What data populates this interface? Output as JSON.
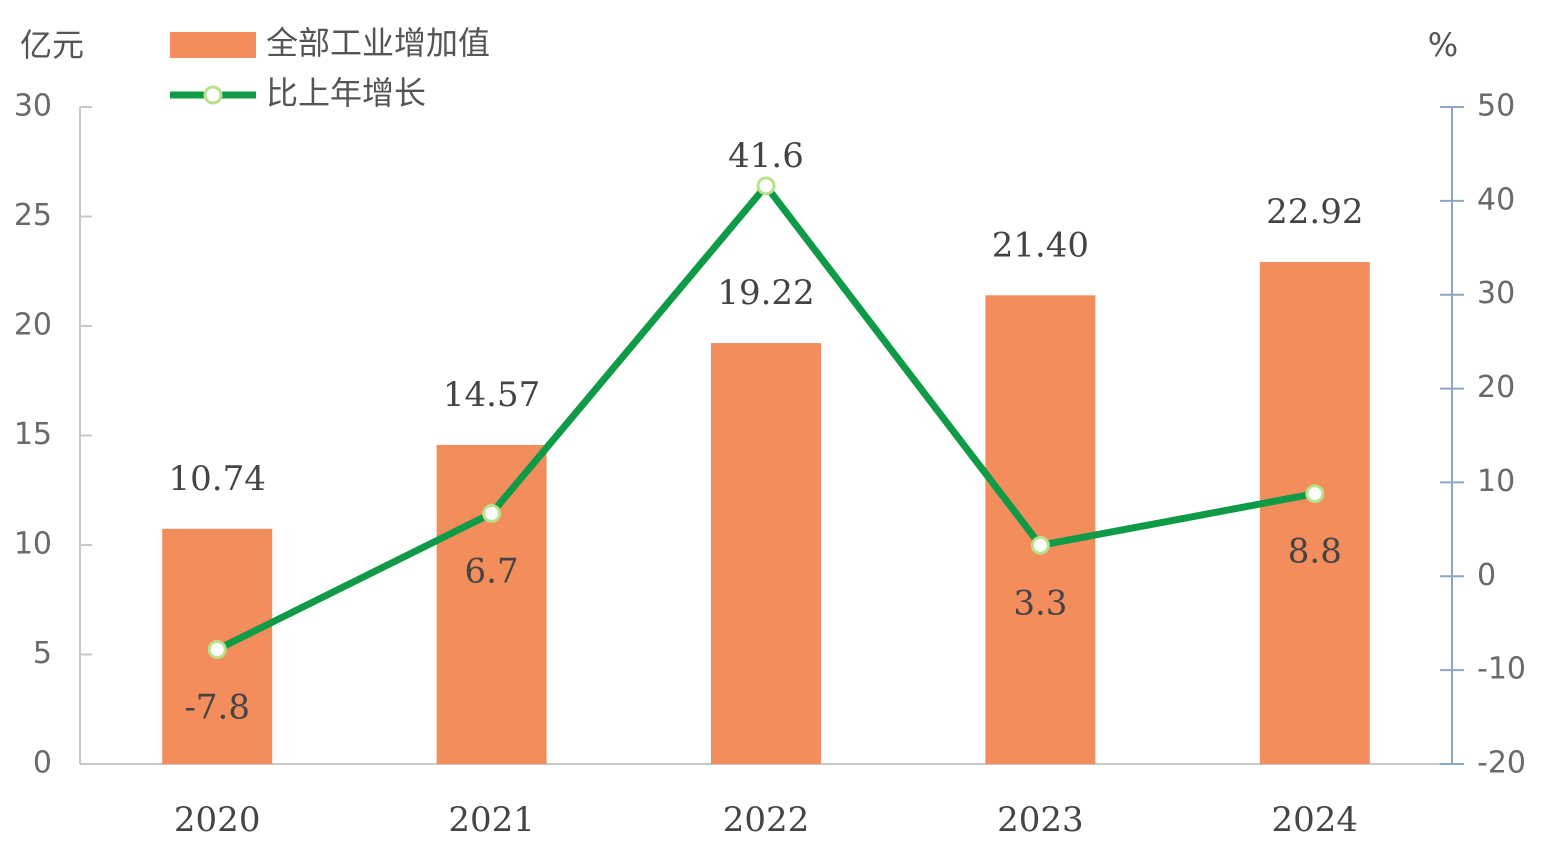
{
  "chart_data": {
    "type": "bar",
    "y_unit": "亿元",
    "y2_unit": "%",
    "categories": [
      "2020",
      "2021",
      "2022",
      "2023",
      "2024"
    ],
    "series": [
      {
        "name": "全部工业增加值",
        "type": "bar",
        "color": "#f38d5b",
        "values": [
          10.74,
          14.57,
          19.22,
          21.4,
          22.92
        ],
        "value_labels": [
          "10.74",
          "14.57",
          "19.22",
          "21.40",
          "22.92"
        ]
      },
      {
        "name": "比上年增长",
        "type": "line",
        "axis": "y2",
        "color": "#0e9a47",
        "values": [
          -7.8,
          6.7,
          41.6,
          3.3,
          8.8
        ]
      }
    ],
    "ylim": [
      0,
      30
    ],
    "yticks": [
      0,
      5,
      10,
      15,
      20,
      25,
      30
    ],
    "y2lim": [
      -20,
      50
    ],
    "y2ticks": [
      -20,
      -10,
      0,
      10,
      20,
      30,
      40,
      50
    ]
  }
}
